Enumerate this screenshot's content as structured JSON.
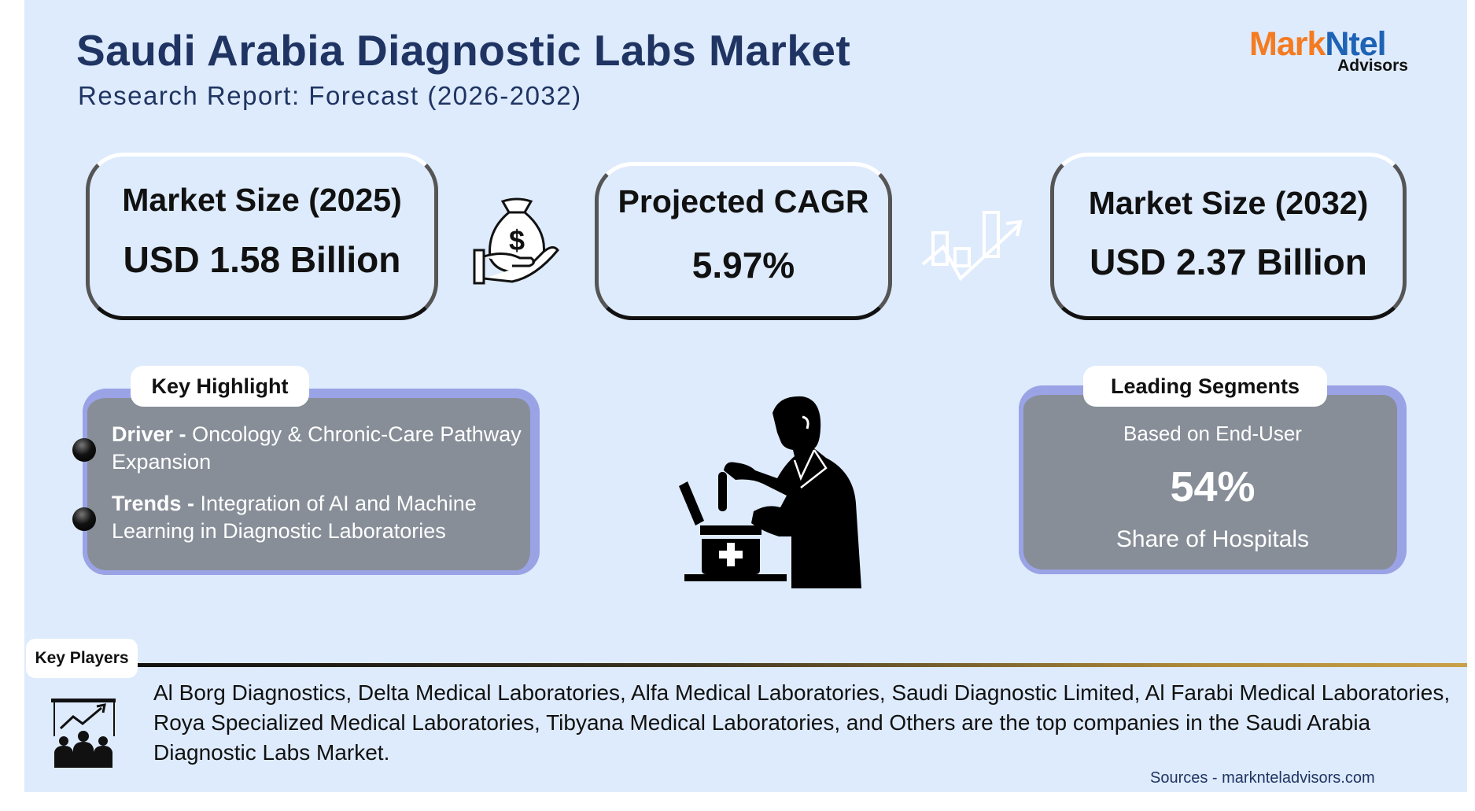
{
  "header": {
    "title": "Saudi Arabia Diagnostic Labs Market",
    "subtitle": "Research Report: Forecast (2026-2032)",
    "logo": {
      "mark_part1": "Mark",
      "mark_part2": "Ntel",
      "sub": "Advisors",
      "colors": {
        "mark_part1": "#f47b20",
        "mark_part2": "#1e63b5"
      }
    }
  },
  "stats": [
    {
      "label": "Market Size (2025)",
      "value": "USD 1.58 Billion",
      "icon": "money-bag-hand-icon"
    },
    {
      "label": "Projected CAGR",
      "value": "5.97%",
      "icon": "growth-chart-arrow-icon"
    },
    {
      "label": "Market Size (2032)",
      "value": "USD 2.37 Billion"
    }
  ],
  "key_highlight": {
    "title": "Key Highlight",
    "items": [
      {
        "label": "Driver -",
        "text": "Oncology & Chronic-Care Pathway Expansion"
      },
      {
        "label": "Trends -",
        "text": "Integration of AI and Machine Learning in Diagnostic Laboratories"
      }
    ]
  },
  "leading_segments": {
    "title": "Leading Segments",
    "basis": "Based on End-User",
    "value": "54%",
    "caption": "Share of Hospitals"
  },
  "key_players": {
    "title": "Key Players",
    "text": "Al Borg Diagnostics, Delta Medical Laboratories, Alfa Medical Laboratories, Saudi Diagnostic Limited, Al Farabi Medical Laboratories, Roya Specialized Medical Laboratories, Tibyana Medical Laboratories,  and Others are the top companies in the Saudi Arabia Diagnostic Labs Market."
  },
  "sources": "Sources - marknteladvisors.com",
  "colors": {
    "background": "#deebfc",
    "title": "#1f3462",
    "panel": "#878e98",
    "panel_border": "#9aa3e6"
  }
}
